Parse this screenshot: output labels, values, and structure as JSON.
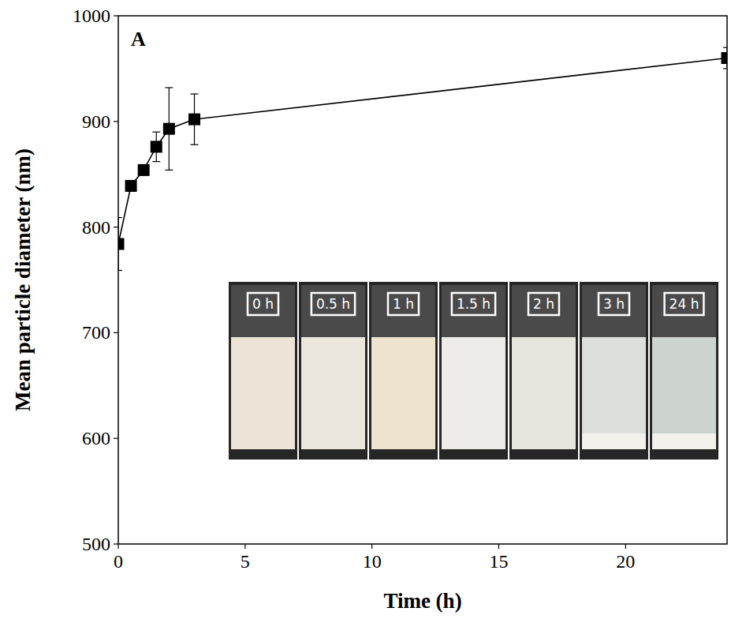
{
  "chart_data": {
    "type": "line",
    "title": "A",
    "x_label": "Time (h)",
    "y_label": "Mean particle diameter (nm)",
    "x": [
      0,
      0.5,
      1,
      1.5,
      2,
      3,
      24
    ],
    "values": [
      784,
      839,
      854,
      876,
      893,
      902,
      960
    ],
    "errors": [
      25,
      5,
      5,
      14,
      39,
      24,
      10
    ],
    "xlim": [
      0,
      24
    ],
    "xticks": [
      0,
      5,
      10,
      15,
      20
    ],
    "ylim": [
      500,
      1000
    ],
    "yticks": [
      500,
      600,
      700,
      800,
      900,
      1000
    ],
    "color": "#000000",
    "marker": "square",
    "line_style": "solid",
    "grid": false,
    "annotations": [
      "0 h",
      "0.5 h",
      "1 h",
      "1.5 h",
      "2 h",
      "3 h",
      "24 h"
    ]
  }
}
